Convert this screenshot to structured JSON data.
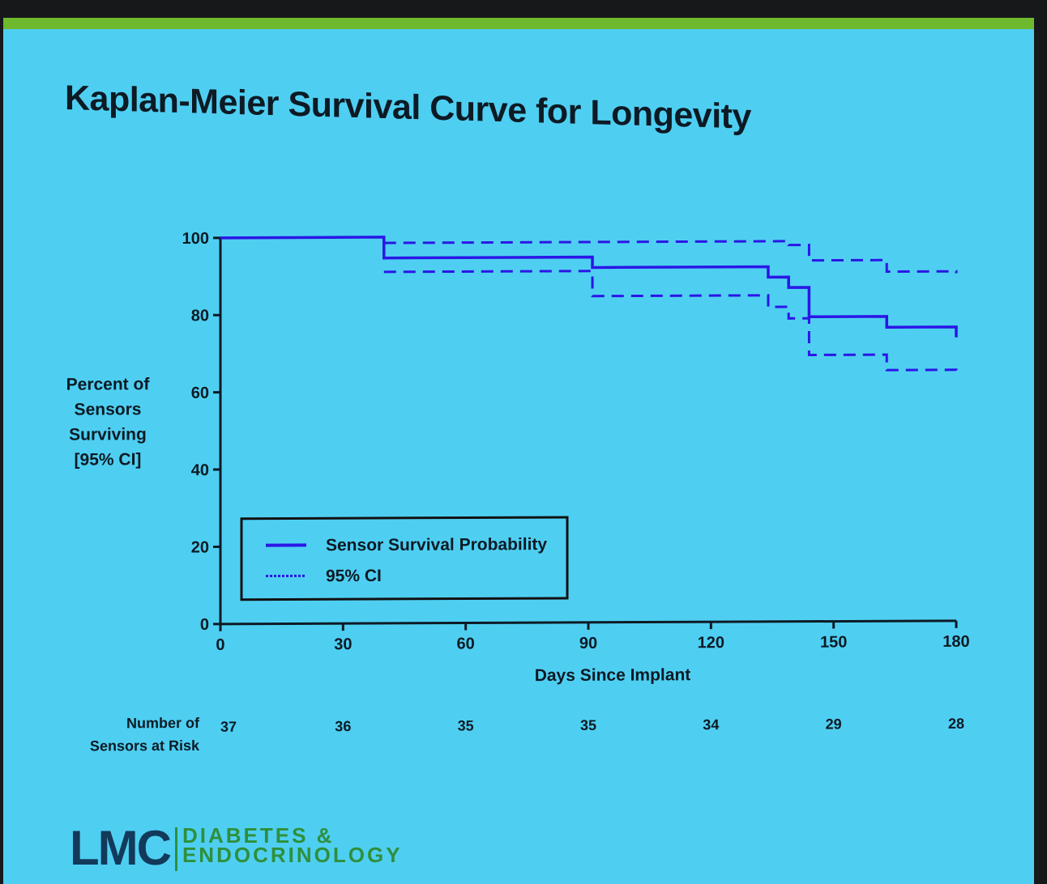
{
  "slide": {
    "title": "Kaplan-Meier Survival Curve for Longevity",
    "colors": {
      "background": "#4ecff2",
      "accent_bar": "#6fb92f",
      "series": "#2b16e6",
      "text": "#0d1a24"
    }
  },
  "chart_data": {
    "type": "line",
    "title": "Kaplan-Meier Survival Curve for Longevity",
    "xlabel": "Days Since Implant",
    "ylabel": [
      "Percent of",
      "Sensors",
      "Surviving",
      "[95% CI]"
    ],
    "xlim": [
      0,
      180
    ],
    "ylim": [
      0,
      100
    ],
    "xticks": [
      0,
      30,
      60,
      90,
      120,
      150,
      180
    ],
    "yticks": [
      0,
      20,
      40,
      60,
      80,
      100
    ],
    "grid": false,
    "legend_position": "bottom-left",
    "series": [
      {
        "name": "Sensor Survival Probability",
        "style": "solid",
        "step": true,
        "x": [
          0,
          40,
          91,
          134,
          139,
          144,
          163,
          180
        ],
        "y": [
          100,
          94.6,
          91.9,
          89.2,
          86.5,
          78.9,
          76.1,
          73.4
        ]
      },
      {
        "name": "95% CI",
        "style": "dashed",
        "step": true,
        "x": [
          40,
          134,
          139,
          144,
          163,
          180
        ],
        "y": [
          98.5,
          98.5,
          97.5,
          93.5,
          90.5,
          90.0
        ]
      },
      {
        "name": "95% CI",
        "style": "dashed",
        "step": true,
        "x": [
          40,
          91,
          134,
          139,
          144,
          163,
          180
        ],
        "y": [
          91.0,
          84.5,
          81.5,
          78.5,
          69.0,
          65.0,
          64.5
        ]
      }
    ],
    "risk_table": {
      "label": [
        "Number of",
        "Sensors at Risk"
      ],
      "x": [
        0,
        30,
        60,
        90,
        120,
        150,
        180
      ],
      "values": [
        "37",
        "36",
        "35",
        "35",
        "34",
        "29",
        "28"
      ]
    }
  },
  "logo": {
    "mark": "LMC",
    "lines": [
      "DIABETES &",
      "ENDOCRINOLOGY"
    ]
  }
}
